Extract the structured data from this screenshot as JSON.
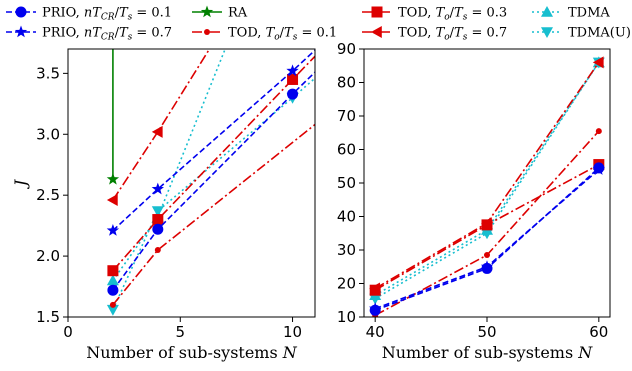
{
  "legend": [
    {
      "key": "prio01",
      "label": "PRIO, nT_CR/T_s = 0.1"
    },
    {
      "key": "prio07",
      "label": "PRIO, nT_CR/T_s = 0.7"
    },
    {
      "key": "ra",
      "label": "RA"
    },
    {
      "key": "tod01",
      "label": "TOD, T_o/T_s = 0.1"
    },
    {
      "key": "tod03",
      "label": "TOD, T_o/T_s = 0.3"
    },
    {
      "key": "tod07",
      "label": "TOD, T_o/T_s = 0.7"
    },
    {
      "key": "tdma",
      "label": "TDMA"
    },
    {
      "key": "tdmau",
      "label": "TDMA(U)"
    }
  ],
  "styles": {
    "prio01": {
      "color": "#0000ee",
      "dash": "6,3",
      "marker": "circle"
    },
    "prio07": {
      "color": "#0000ee",
      "dash": "6,3",
      "marker": "star"
    },
    "ra": {
      "color": "#008000",
      "dash": "",
      "marker": "star"
    },
    "tod01": {
      "color": "#dd0000",
      "dash": "10,3,2,3",
      "marker": "dot"
    },
    "tod03": {
      "color": "#dd0000",
      "dash": "10,3,2,3",
      "marker": "square"
    },
    "tod07": {
      "color": "#dd0000",
      "dash": "10,3,2,3",
      "marker": "triangle-left"
    },
    "tdma": {
      "color": "#17becf",
      "dash": "2,3",
      "marker": "triangle-up"
    },
    "tdmau": {
      "color": "#17becf",
      "dash": "2,3",
      "marker": "triangle-down"
    }
  },
  "chart_data": [
    {
      "type": "line",
      "xlabel": "Number of sub-systems N",
      "ylabel": "J",
      "xlim": [
        0,
        11
      ],
      "ylim": [
        1.5,
        3.7
      ],
      "xticks": [
        0,
        5,
        10
      ],
      "yticks": [
        1.5,
        2.0,
        2.5,
        3.0,
        3.5
      ],
      "grid": false,
      "series": [
        {
          "key": "ra",
          "x": [
            2,
            2
          ],
          "y": [
            2.63,
            3.7
          ]
        },
        {
          "key": "tdma",
          "x": [
            2,
            4,
            7
          ],
          "y": [
            1.8,
            2.32,
            3.7
          ]
        },
        {
          "key": "tod07",
          "x": [
            2,
            4,
            6.3
          ],
          "y": [
            2.46,
            3.02,
            3.7
          ]
        },
        {
          "key": "tdmau",
          "x": [
            2,
            4,
            10,
            11
          ],
          "y": [
            1.56,
            2.37,
            3.3,
            3.46
          ]
        },
        {
          "key": "tod03",
          "x": [
            2,
            4,
            10,
            11
          ],
          "y": [
            1.88,
            2.3,
            3.45,
            3.64
          ]
        },
        {
          "key": "prio07",
          "x": [
            2,
            4,
            10,
            11
          ],
          "y": [
            2.21,
            2.55,
            3.52,
            3.69
          ]
        },
        {
          "key": "prio01",
          "x": [
            2,
            4,
            10,
            11
          ],
          "y": [
            1.72,
            2.22,
            3.33,
            3.51
          ]
        },
        {
          "key": "tod01",
          "x": [
            2,
            4,
            11
          ],
          "y": [
            1.6,
            2.05,
            3.08
          ]
        }
      ]
    },
    {
      "type": "line",
      "xlabel": "Number of sub-systems N",
      "ylabel": "",
      "xlim": [
        39,
        61
      ],
      "ylim": [
        10,
        90
      ],
      "xticks": [
        40,
        50,
        60
      ],
      "yticks": [
        10,
        20,
        30,
        40,
        50,
        60,
        70,
        80,
        90
      ],
      "grid": false,
      "series": [
        {
          "key": "tdma",
          "x": [
            40,
            50,
            60
          ],
          "y": [
            16.5,
            36.0,
            86.0
          ]
        },
        {
          "key": "tdmau",
          "x": [
            40,
            50,
            60
          ],
          "y": [
            15.5,
            35.0,
            86.0
          ]
        },
        {
          "key": "tod07",
          "x": [
            40,
            50,
            60
          ],
          "y": [
            18.5,
            38.0,
            86.0
          ]
        },
        {
          "key": "tod03",
          "x": [
            40,
            50,
            60
          ],
          "y": [
            18.0,
            37.5,
            55.5
          ]
        },
        {
          "key": "tod01",
          "x": [
            40,
            50,
            60
          ],
          "y": [
            10.5,
            28.5,
            65.5
          ]
        },
        {
          "key": "prio07",
          "x": [
            40,
            50,
            60
          ],
          "y": [
            12.5,
            25.0,
            54.0
          ]
        },
        {
          "key": "prio01",
          "x": [
            40,
            50,
            60
          ],
          "y": [
            12.0,
            24.5,
            54.5
          ]
        }
      ]
    }
  ]
}
